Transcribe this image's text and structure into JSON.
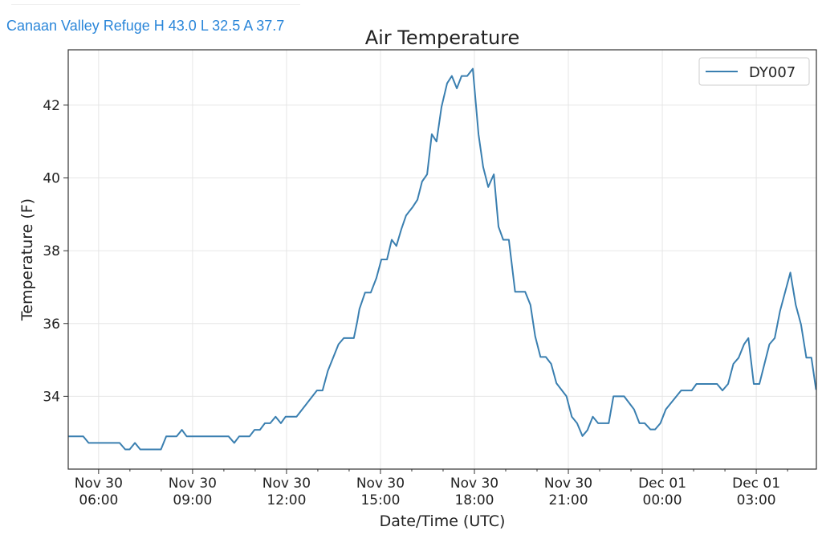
{
  "header": {
    "station_summary": "Canaan Valley Refuge H 43.0 L 32.5 A 37.7"
  },
  "colors": {
    "line": "#3a7fb0",
    "grid": "#e6e6e6",
    "axis": "#333333",
    "header_text": "#2a86d9"
  },
  "chart_data": {
    "type": "line",
    "title": "Air Temperature",
    "xlabel": "Date/Time (UTC)",
    "ylabel": "Temperature (F)",
    "x_units": "hours since Nov 30 00:00 UTC",
    "xlim": [
      5.03,
      28.92
    ],
    "ylim": [
      32.0,
      43.52
    ],
    "grid": true,
    "legend_position": "top-right",
    "x_ticks": [
      {
        "value": 6,
        "label": [
          "Nov 30",
          "06:00"
        ]
      },
      {
        "value": 9,
        "label": [
          "Nov 30",
          "09:00"
        ]
      },
      {
        "value": 12,
        "label": [
          "Nov 30",
          "12:00"
        ]
      },
      {
        "value": 15,
        "label": [
          "Nov 30",
          "15:00"
        ]
      },
      {
        "value": 18,
        "label": [
          "Nov 30",
          "18:00"
        ]
      },
      {
        "value": 21,
        "label": [
          "Nov 30",
          "21:00"
        ]
      },
      {
        "value": 24,
        "label": [
          "Dec 01",
          "00:00"
        ]
      },
      {
        "value": 27,
        "label": [
          "Dec 01",
          "03:00"
        ]
      }
    ],
    "y_ticks": [
      34,
      36,
      38,
      40,
      42
    ],
    "series": [
      {
        "name": "DY007",
        "x": [
          5.03,
          5.51,
          5.68,
          6.67,
          6.85,
          6.99,
          7.16,
          7.33,
          7.99,
          8.16,
          8.49,
          8.66,
          8.81,
          10.15,
          10.33,
          10.49,
          10.82,
          10.98,
          11.15,
          11.31,
          11.48,
          11.65,
          11.82,
          11.97,
          12.32,
          12.97,
          13.15,
          13.32,
          13.66,
          13.83,
          14.15,
          14.26,
          14.33,
          14.51,
          14.69,
          14.87,
          15.03,
          15.21,
          15.36,
          15.51,
          15.67,
          15.82,
          16.03,
          16.18,
          16.33,
          16.49,
          16.64,
          16.79,
          16.95,
          17.13,
          17.28,
          17.44,
          17.59,
          17.77,
          17.95,
          18.13,
          18.28,
          18.44,
          18.62,
          18.77,
          18.92,
          19.1,
          19.3,
          19.62,
          19.79,
          19.94,
          20.11,
          20.28,
          20.45,
          20.62,
          20.94,
          21.11,
          21.28,
          21.45,
          21.61,
          21.78,
          21.95,
          22.29,
          22.44,
          22.78,
          23.1,
          23.27,
          23.44,
          23.62,
          23.77,
          23.94,
          24.11,
          24.6,
          24.94,
          25.09,
          25.75,
          25.92,
          26.1,
          26.27,
          26.44,
          26.61,
          26.75,
          26.92,
          27.1,
          27.42,
          27.59,
          27.76,
          28.09,
          28.26,
          28.43,
          28.6,
          28.76,
          28.91
        ],
        "y": [
          32.9,
          32.9,
          32.72,
          32.72,
          32.54,
          32.54,
          32.72,
          32.54,
          32.54,
          32.9,
          32.9,
          33.08,
          32.9,
          32.9,
          32.72,
          32.9,
          32.9,
          33.08,
          33.08,
          33.26,
          33.26,
          33.44,
          33.26,
          33.44,
          33.44,
          34.16,
          34.16,
          34.7,
          35.43,
          35.6,
          35.6,
          36.06,
          36.4,
          36.85,
          36.85,
          37.25,
          37.76,
          37.76,
          38.3,
          38.13,
          38.6,
          38.97,
          39.2,
          39.4,
          39.9,
          40.1,
          41.2,
          41.0,
          41.95,
          42.6,
          42.8,
          42.46,
          42.8,
          42.8,
          43.0,
          41.2,
          40.3,
          39.75,
          40.1,
          38.66,
          38.3,
          38.3,
          36.87,
          36.87,
          36.51,
          35.65,
          35.08,
          35.08,
          34.89,
          34.36,
          34.0,
          33.44,
          33.26,
          32.91,
          33.07,
          33.44,
          33.26,
          33.26,
          34.0,
          34.0,
          33.64,
          33.26,
          33.26,
          33.09,
          33.09,
          33.26,
          33.64,
          34.16,
          34.16,
          34.34,
          34.34,
          34.16,
          34.34,
          34.89,
          35.06,
          35.43,
          35.6,
          34.34,
          34.34,
          35.43,
          35.6,
          36.34,
          37.4,
          36.51,
          35.97,
          35.06,
          35.06,
          34.18
        ]
      }
    ]
  }
}
